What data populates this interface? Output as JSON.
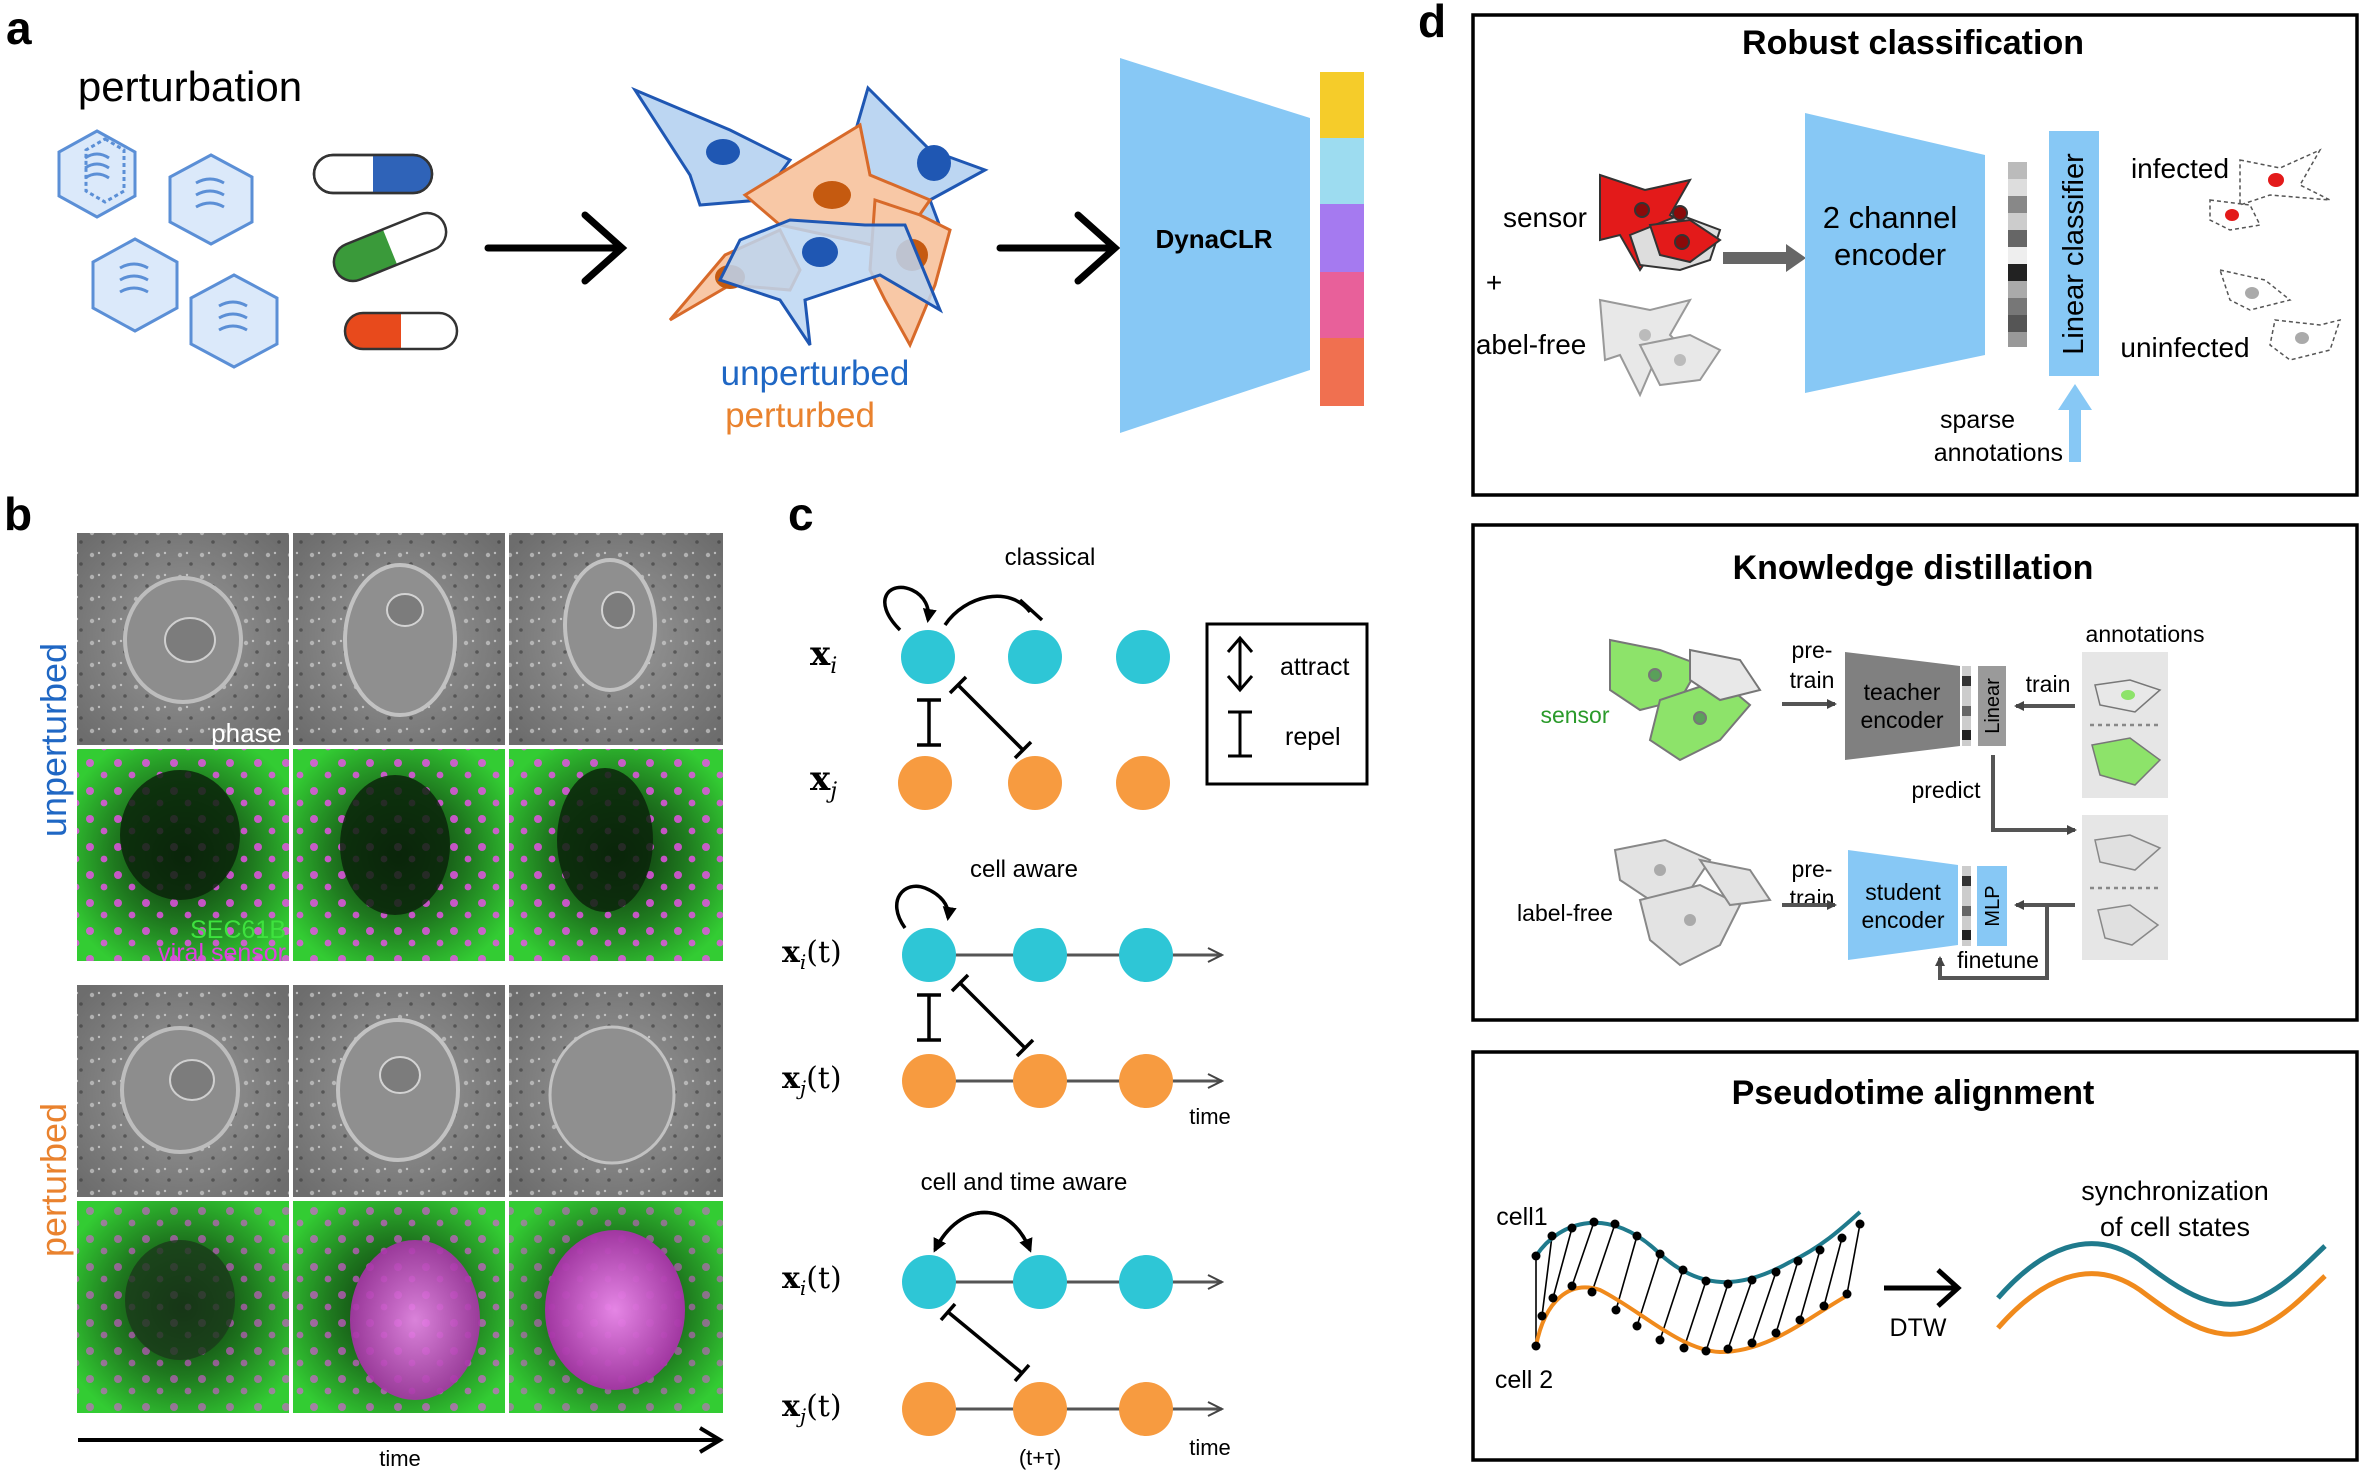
{
  "panel_a": {
    "letter": "a",
    "perturbation": "perturbation",
    "unperturbed": "unperturbed",
    "perturbed": "perturbed",
    "encoder": "DynaCLR",
    "colors": {
      "virus": "#5b8fd6",
      "pill_blue": "#2f63b8",
      "pill_green": "#3a9a3a",
      "pill_red": "#e84a1c",
      "cell_blue_fill": "#bcd6f2",
      "cell_blue_stroke": "#1f57b3",
      "cell_orange_fill": "#f8c8a6",
      "cell_orange_stroke": "#d86a2a",
      "encoder": "#87c8f5",
      "embedding": [
        "#f5cc2a",
        "#9ddcf0",
        "#a57af0",
        "#e8609a",
        "#f07050"
      ]
    }
  },
  "panel_b": {
    "letter": "b",
    "unperturbed": "unperturbed",
    "perturbed": "perturbed",
    "phase": "phase",
    "sec61b": "SEC61B",
    "viral_sensor": "viral sensor",
    "time": "time",
    "colors": {
      "unperturbed": "#1f67c4",
      "perturbed": "#e9822e",
      "sec61b": "#3ee23e",
      "sensor": "#e040e0"
    }
  },
  "panel_c": {
    "letter": "c",
    "classical": "classical",
    "cell_aware": "cell aware",
    "cell_time_aware": "cell and time aware",
    "attract": "attract",
    "repel": "repel",
    "time": "time",
    "tau": "(t+τ)",
    "xi": "x",
    "xi_sub": "i",
    "xj_sub": "j",
    "t_arg": "(t)",
    "colors": {
      "i": "#2ec6d6",
      "j": "#f79b40"
    }
  },
  "panel_d": {
    "letter": "d",
    "robust": {
      "title": "Robust classification",
      "sensor": "sensor",
      "plus": "+",
      "label_free": "label-free",
      "encoder": [
        "2 channel",
        "encoder"
      ],
      "linear": "Linear classifier",
      "infected": "infected",
      "uninfected": "uninfected",
      "sparse": [
        "sparse",
        "annotations"
      ]
    },
    "distill": {
      "title": "Knowledge distillation",
      "sensor": "sensor",
      "label_free": "label-free",
      "pretrain1": [
        "pre-",
        "train"
      ],
      "pretrain2": [
        "pre-",
        "train"
      ],
      "teacher": [
        "teacher",
        "encoder"
      ],
      "student": [
        "student",
        "encoder"
      ],
      "linear": "Linear",
      "mlp": "MLP",
      "annotations": "annotations",
      "train": "train",
      "predict": "predict",
      "finetune": "finetune"
    },
    "pseudo": {
      "title": "Pseudotime alignment",
      "cell1": "cell1",
      "cell2": "cell 2",
      "dtw": "DTW",
      "sync": [
        "synchronization",
        "of cell states"
      ],
      "colors": {
        "cell1": "#1f7a8c",
        "cell2": "#f08a1c"
      }
    }
  }
}
